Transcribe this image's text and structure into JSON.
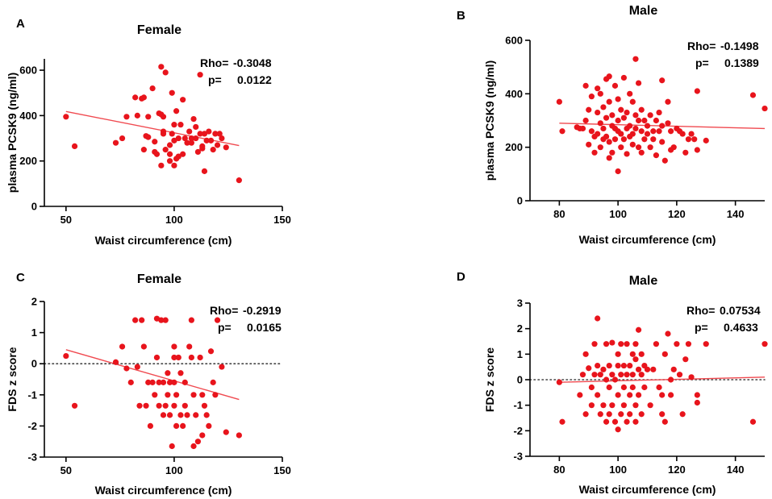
{
  "colors": {
    "point": "#e8141c",
    "fit": "#f04a50",
    "axis": "#000000",
    "zero_line": "#444444"
  },
  "chart_data": [
    {
      "id": "A",
      "letter": "A",
      "type": "scatter",
      "title": "Female",
      "xlabel": "Waist circumference (cm)",
      "ylabel": "plasma PCSK9 (ng/ml)",
      "xlim": [
        40,
        150
      ],
      "ylim": [
        0,
        650
      ],
      "xticks": [
        50,
        100,
        150
      ],
      "yticks": [
        0,
        200,
        400,
        600
      ],
      "rho_label": "Rho=",
      "rho_value": "-0.3048",
      "p_label": "p=",
      "p_value": "0.0122",
      "fit": {
        "x": [
          50,
          130
        ],
        "y": [
          418,
          268
        ]
      },
      "zero_line": false,
      "points": [
        [
          50,
          395
        ],
        [
          54,
          265
        ],
        [
          73,
          280
        ],
        [
          76,
          300
        ],
        [
          78,
          395
        ],
        [
          82,
          480
        ],
        [
          83,
          400
        ],
        [
          85,
          475
        ],
        [
          86,
          480
        ],
        [
          86,
          250
        ],
        [
          87,
          310
        ],
        [
          88,
          395
        ],
        [
          88,
          305
        ],
        [
          90,
          520
        ],
        [
          91,
          285
        ],
        [
          91,
          240
        ],
        [
          92,
          230
        ],
        [
          93,
          410
        ],
        [
          94,
          405
        ],
        [
          94,
          615
        ],
        [
          94,
          180
        ],
        [
          95,
          395
        ],
        [
          95,
          320
        ],
        [
          95,
          330
        ],
        [
          96,
          590
        ],
        [
          96,
          250
        ],
        [
          98,
          270
        ],
        [
          98,
          230
        ],
        [
          98,
          200
        ],
        [
          99,
          320
        ],
        [
          99,
          500
        ],
        [
          100,
          290
        ],
        [
          100,
          360
        ],
        [
          100,
          180
        ],
        [
          101,
          210
        ],
        [
          101,
          420
        ],
        [
          102,
          300
        ],
        [
          102,
          220
        ],
        [
          103,
          360
        ],
        [
          104,
          230
        ],
        [
          104,
          470
        ],
        [
          105,
          300
        ],
        [
          106,
          280
        ],
        [
          107,
          330
        ],
        [
          108,
          300
        ],
        [
          108,
          280
        ],
        [
          109,
          385
        ],
        [
          110,
          350
        ],
        [
          110,
          300
        ],
        [
          111,
          240
        ],
        [
          112,
          320
        ],
        [
          113,
          265
        ],
        [
          113,
          255
        ],
        [
          114,
          155
        ],
        [
          114,
          320
        ],
        [
          115,
          290
        ],
        [
          116,
          330
        ],
        [
          117,
          290
        ],
        [
          118,
          250
        ],
        [
          119,
          320
        ],
        [
          120,
          270
        ],
        [
          121,
          320
        ],
        [
          122,
          300
        ],
        [
          112,
          580
        ],
        [
          124,
          260
        ],
        [
          130,
          115
        ]
      ]
    },
    {
      "id": "B",
      "letter": "B",
      "type": "scatter",
      "title": "Male",
      "xlabel": "Waist circumference (cm)",
      "ylabel": "plasma PCSK9 (ng/ml)",
      "xlim": [
        70,
        150
      ],
      "ylim": [
        0,
        600
      ],
      "xticks": [
        80,
        100,
        120,
        140
      ],
      "yticks": [
        0,
        200,
        400,
        600
      ],
      "rho_label": "Rho=",
      "rho_value": "-0.1498",
      "p_label": "p=",
      "p_value": "0.1389",
      "fit": {
        "x": [
          80,
          150
        ],
        "y": [
          290,
          270
        ]
      },
      "zero_line": false,
      "points": [
        [
          80,
          370
        ],
        [
          81,
          260
        ],
        [
          86,
          275
        ],
        [
          87,
          270
        ],
        [
          88,
          270
        ],
        [
          89,
          430
        ],
        [
          89,
          300
        ],
        [
          90,
          340
        ],
        [
          90,
          210
        ],
        [
          91,
          390
        ],
        [
          91,
          260
        ],
        [
          92,
          240
        ],
        [
          92,
          180
        ],
        [
          93,
          420
        ],
        [
          93,
          330
        ],
        [
          93,
          250
        ],
        [
          94,
          400
        ],
        [
          94,
          290
        ],
        [
          94,
          200
        ],
        [
          95,
          350
        ],
        [
          95,
          270
        ],
        [
          95,
          230
        ],
        [
          96,
          455
        ],
        [
          96,
          310
        ],
        [
          96,
          240
        ],
        [
          97,
          465
        ],
        [
          97,
          370
        ],
        [
          97,
          220
        ],
        [
          97,
          160
        ],
        [
          98,
          320
        ],
        [
          98,
          280
        ],
        [
          98,
          180
        ],
        [
          99,
          430
        ],
        [
          99,
          270
        ],
        [
          99,
          230
        ],
        [
          100,
          380
        ],
        [
          100,
          300
        ],
        [
          100,
          260
        ],
        [
          100,
          110
        ],
        [
          101,
          340
        ],
        [
          101,
          250
        ],
        [
          101,
          200
        ],
        [
          102,
          460
        ],
        [
          102,
          310
        ],
        [
          102,
          230
        ],
        [
          103,
          330
        ],
        [
          103,
          270
        ],
        [
          103,
          175
        ],
        [
          104,
          400
        ],
        [
          104,
          280
        ],
        [
          104,
          240
        ],
        [
          105,
          370
        ],
        [
          105,
          250
        ],
        [
          105,
          210
        ],
        [
          106,
          530
        ],
        [
          106,
          320
        ],
        [
          106,
          270
        ],
        [
          107,
          440
        ],
        [
          107,
          300
        ],
        [
          107,
          200
        ],
        [
          108,
          340
        ],
        [
          108,
          260
        ],
        [
          108,
          180
        ],
        [
          109,
          300
        ],
        [
          109,
          230
        ],
        [
          110,
          280
        ],
        [
          110,
          250
        ],
        [
          111,
          320
        ],
        [
          111,
          200
        ],
        [
          112,
          260
        ],
        [
          112,
          230
        ],
        [
          113,
          300
        ],
        [
          113,
          170
        ],
        [
          114,
          330
        ],
        [
          114,
          260
        ],
        [
          115,
          450
        ],
        [
          115,
          280
        ],
        [
          115,
          220
        ],
        [
          116,
          150
        ],
        [
          117,
          370
        ],
        [
          117,
          290
        ],
        [
          118,
          260
        ],
        [
          118,
          190
        ],
        [
          119,
          200
        ],
        [
          120,
          270
        ],
        [
          121,
          260
        ],
        [
          122,
          250
        ],
        [
          123,
          180
        ],
        [
          124,
          230
        ],
        [
          125,
          250
        ],
        [
          126,
          230
        ],
        [
          127,
          190
        ],
        [
          127,
          410
        ],
        [
          130,
          225
        ],
        [
          146,
          395
        ],
        [
          150,
          345
        ]
      ]
    },
    {
      "id": "C",
      "letter": "C",
      "type": "scatter",
      "title": "Female",
      "xlabel": "Waist circumference (cm)",
      "ylabel": "FDS z score",
      "xlim": [
        40,
        150
      ],
      "ylim": [
        -3,
        2
      ],
      "xticks": [
        50,
        100,
        150
      ],
      "yticks": [
        -3,
        -2,
        -1,
        0,
        1,
        2
      ],
      "rho_label": "Rho=",
      "rho_value": "-0.2919",
      "p_label": "p=",
      "p_value": "0.0165",
      "fit": {
        "x": [
          50,
          130
        ],
        "y": [
          0.45,
          -1.15
        ]
      },
      "zero_line": true,
      "points": [
        [
          50,
          0.25
        ],
        [
          54,
          -1.35
        ],
        [
          73,
          0.05
        ],
        [
          76,
          0.55
        ],
        [
          78,
          -0.15
        ],
        [
          80,
          -0.6
        ],
        [
          82,
          1.4
        ],
        [
          83,
          -0.1
        ],
        [
          84,
          -1.35
        ],
        [
          85,
          1.4
        ],
        [
          86,
          0.55
        ],
        [
          87,
          -1.35
        ],
        [
          88,
          -0.6
        ],
        [
          89,
          -2.0
        ],
        [
          90,
          -0.6
        ],
        [
          91,
          -1.0
        ],
        [
          92,
          0.2
        ],
        [
          92,
          1.45
        ],
        [
          93,
          -1.35
        ],
        [
          93,
          -0.6
        ],
        [
          94,
          1.4
        ],
        [
          95,
          -0.6
        ],
        [
          95,
          -1.65
        ],
        [
          96,
          -1.35
        ],
        [
          96,
          1.4
        ],
        [
          97,
          -0.3
        ],
        [
          97,
          -1.0
        ],
        [
          98,
          -0.6
        ],
        [
          98,
          -1.65
        ],
        [
          99,
          -2.65
        ],
        [
          100,
          0.55
        ],
        [
          100,
          0.2
        ],
        [
          100,
          -0.6
        ],
        [
          100,
          -1.35
        ],
        [
          101,
          -1.0
        ],
        [
          101,
          -2.0
        ],
        [
          102,
          0.2
        ],
        [
          103,
          -0.3
        ],
        [
          103,
          -1.65
        ],
        [
          104,
          -2.0
        ],
        [
          105,
          -0.6
        ],
        [
          105,
          -1.35
        ],
        [
          106,
          -1.65
        ],
        [
          107,
          0.55
        ],
        [
          108,
          0.2
        ],
        [
          108,
          1.4
        ],
        [
          109,
          -1.0
        ],
        [
          109,
          -2.65
        ],
        [
          110,
          -1.65
        ],
        [
          111,
          -2.5
        ],
        [
          112,
          0.2
        ],
        [
          113,
          -1.0
        ],
        [
          113,
          -2.3
        ],
        [
          114,
          -1.35
        ],
        [
          115,
          -1.65
        ],
        [
          116,
          -2.0
        ],
        [
          117,
          0.4
        ],
        [
          118,
          -0.6
        ],
        [
          119,
          -1.0
        ],
        [
          120,
          1.4
        ],
        [
          122,
          -0.1
        ],
        [
          124,
          -2.2
        ],
        [
          130,
          -2.3
        ]
      ]
    },
    {
      "id": "D",
      "letter": "D",
      "type": "scatter",
      "title": "Male",
      "xlabel": "Waist circumference (cm)",
      "ylabel": "FDS z score",
      "xlim": [
        70,
        150
      ],
      "ylim": [
        -3,
        3
      ],
      "xticks": [
        80,
        100,
        120,
        140
      ],
      "yticks": [
        -3,
        -2,
        -1,
        0,
        1,
        2,
        3
      ],
      "rho_label": "Rho=",
      "rho_value": "0.07534",
      "p_label": "p=",
      "p_value": "0.4633",
      "fit": {
        "x": [
          80,
          150
        ],
        "y": [
          -0.1,
          0.1
        ]
      },
      "zero_line": true,
      "points": [
        [
          80,
          -0.1
        ],
        [
          81,
          -1.65
        ],
        [
          87,
          -0.6
        ],
        [
          88,
          0.2
        ],
        [
          89,
          1.0
        ],
        [
          89,
          -1.35
        ],
        [
          90,
          0.45
        ],
        [
          91,
          -0.3
        ],
        [
          91,
          -1.0
        ],
        [
          92,
          0.2
        ],
        [
          92,
          1.4
        ],
        [
          93,
          2.4
        ],
        [
          93,
          0.55
        ],
        [
          93,
          -0.6
        ],
        [
          94,
          0.2
        ],
        [
          94,
          -1.35
        ],
        [
          95,
          0.4
        ],
        [
          95,
          -1.0
        ],
        [
          96,
          1.4
        ],
        [
          96,
          0.0
        ],
        [
          96,
          -1.65
        ],
        [
          97,
          0.55
        ],
        [
          97,
          -0.3
        ],
        [
          97,
          -1.35
        ],
        [
          98,
          1.45
        ],
        [
          98,
          0.2
        ],
        [
          98,
          -1.0
        ],
        [
          99,
          -1.65
        ],
        [
          99,
          0.0
        ],
        [
          100,
          1.0
        ],
        [
          100,
          0.55
        ],
        [
          100,
          -0.6
        ],
        [
          100,
          -1.95
        ],
        [
          101,
          1.4
        ],
        [
          101,
          0.2
        ],
        [
          101,
          -1.35
        ],
        [
          102,
          0.55
        ],
        [
          102,
          -0.3
        ],
        [
          102,
          -1.0
        ],
        [
          103,
          1.4
        ],
        [
          103,
          0.2
        ],
        [
          103,
          -1.65
        ],
        [
          104,
          0.55
        ],
        [
          104,
          -0.6
        ],
        [
          104,
          -1.35
        ],
        [
          105,
          1.0
        ],
        [
          105,
          0.2
        ],
        [
          105,
          -0.3
        ],
        [
          106,
          1.4
        ],
        [
          106,
          0.8
        ],
        [
          106,
          -1.0
        ],
        [
          106,
          -1.65
        ],
        [
          107,
          1.95
        ],
        [
          107,
          0.4
        ],
        [
          107,
          -0.6
        ],
        [
          108,
          1.0
        ],
        [
          108,
          0.2
        ],
        [
          108,
          -1.35
        ],
        [
          109,
          -0.3
        ],
        [
          109,
          0.55
        ],
        [
          110,
          0.4
        ],
        [
          111,
          -1.0
        ],
        [
          112,
          0.4
        ],
        [
          113,
          1.4
        ],
        [
          114,
          -0.3
        ],
        [
          115,
          -0.6
        ],
        [
          115,
          -1.35
        ],
        [
          116,
          1.0
        ],
        [
          116,
          -1.65
        ],
        [
          117,
          1.8
        ],
        [
          118,
          0.0
        ],
        [
          118,
          -0.6
        ],
        [
          119,
          0.4
        ],
        [
          120,
          1.4
        ],
        [
          121,
          0.2
        ],
        [
          122,
          -1.35
        ],
        [
          123,
          0.8
        ],
        [
          124,
          1.4
        ],
        [
          125,
          0.1
        ],
        [
          127,
          -0.6
        ],
        [
          127,
          -0.9
        ],
        [
          130,
          1.4
        ],
        [
          146,
          -1.65
        ],
        [
          150,
          1.4
        ]
      ]
    }
  ]
}
